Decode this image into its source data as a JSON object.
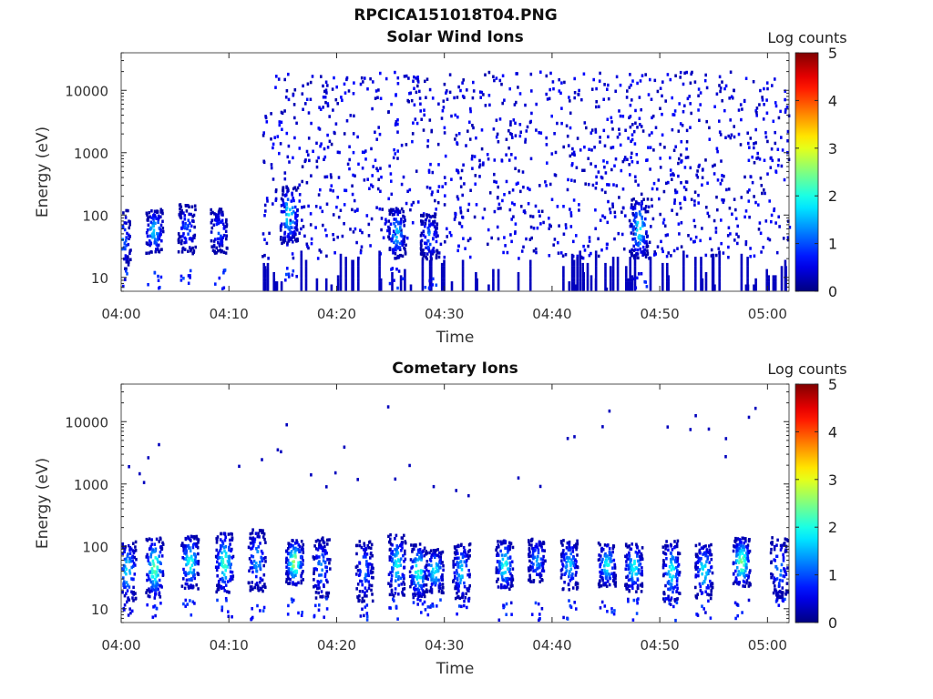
{
  "figure_title": "RPCICA151018T04.PNG",
  "colors": {
    "colormap": [
      "#00007f",
      "#0000ff",
      "#007fff",
      "#00ffff",
      "#7fff7f",
      "#ffff00",
      "#ff7f00",
      "#ff0000",
      "#7f0000"
    ],
    "axis": "#262626"
  },
  "chart_data": [
    {
      "type": "heatmap",
      "title": "Solar Wind Ions",
      "xlabel": "Time",
      "ylabel": "Energy (eV)",
      "colorbar_label": "Log counts",
      "colorbar_ticks": [
        "0",
        "1",
        "2",
        "3",
        "4",
        "5"
      ],
      "clim": [
        0,
        5
      ],
      "xlim": [
        "04:00",
        "05:02"
      ],
      "x_ticks": [
        "04:00",
        "04:10",
        "04:20",
        "04:30",
        "04:40",
        "04:50",
        "05:00"
      ],
      "y_scale": "log",
      "ylim": [
        6,
        40000
      ],
      "y_ticks": [
        "10",
        "100",
        "1000",
        "10000"
      ],
      "background_counts_from": "04:13",
      "ion_bursts": [
        {
          "time": "04:00",
          "energy_peak": 40,
          "log_counts": 1.3
        },
        {
          "time": "04:03",
          "energy_peak": 55,
          "log_counts": 1.7
        },
        {
          "time": "04:06",
          "energy_peak": 60,
          "log_counts": 1.0
        },
        {
          "time": "04:09",
          "energy_peak": 55,
          "log_counts": 1.0
        },
        {
          "time": "04:15.5",
          "energy_peak": 100,
          "log_counts": 1.9
        },
        {
          "time": "04:25.5",
          "energy_peak": 50,
          "log_counts": 1.6
        },
        {
          "time": "04:28.5",
          "energy_peak": 45,
          "log_counts": 1.2
        },
        {
          "time": "04:48",
          "energy_peak": 60,
          "log_counts": 1.9
        }
      ]
    },
    {
      "type": "heatmap",
      "title": "Cometary Ions",
      "xlabel": "Time",
      "ylabel": "Energy (eV)",
      "colorbar_label": "Log counts",
      "colorbar_ticks": [
        "0",
        "1",
        "2",
        "3",
        "4",
        "5"
      ],
      "clim": [
        0,
        5
      ],
      "xlim": [
        "04:00",
        "05:02"
      ],
      "x_ticks": [
        "04:00",
        "04:10",
        "04:20",
        "04:30",
        "04:40",
        "04:50",
        "05:00"
      ],
      "y_scale": "log",
      "ylim": [
        6,
        40000
      ],
      "y_ticks": [
        "10",
        "100",
        "1000",
        "10000"
      ],
      "ion_bursts": [
        {
          "time": "04:00.5",
          "energy_peak": 40,
          "log_counts": 1.8
        },
        {
          "time": "04:03",
          "energy_peak": 45,
          "log_counts": 2.4
        },
        {
          "time": "04:06.3",
          "energy_peak": 55,
          "log_counts": 2.1
        },
        {
          "time": "04:09.5",
          "energy_peak": 55,
          "log_counts": 2.2
        },
        {
          "time": "04:12.5",
          "energy_peak": 60,
          "log_counts": 1.5
        },
        {
          "time": "04:16",
          "energy_peak": 55,
          "log_counts": 2.7
        },
        {
          "time": "04:18.5",
          "energy_peak": 45,
          "log_counts": 1.3
        },
        {
          "time": "04:22.5",
          "energy_peak": 40,
          "log_counts": 1.2
        },
        {
          "time": "04:25.5",
          "energy_peak": 50,
          "log_counts": 1.9
        },
        {
          "time": "04:27.5",
          "energy_peak": 40,
          "log_counts": 2.2
        },
        {
          "time": "04:29",
          "energy_peak": 40,
          "log_counts": 1.9
        },
        {
          "time": "04:31.5",
          "energy_peak": 40,
          "log_counts": 1.7
        },
        {
          "time": "04:35.5",
          "energy_peak": 50,
          "log_counts": 2.1
        },
        {
          "time": "04:38.5",
          "energy_peak": 60,
          "log_counts": 1.4
        },
        {
          "time": "04:41.5",
          "energy_peak": 50,
          "log_counts": 1.6
        },
        {
          "time": "04:45",
          "energy_peak": 50,
          "log_counts": 1.9
        },
        {
          "time": "04:47.5",
          "energy_peak": 45,
          "log_counts": 2.0
        },
        {
          "time": "04:51",
          "energy_peak": 40,
          "log_counts": 1.9
        },
        {
          "time": "04:54",
          "energy_peak": 40,
          "log_counts": 1.9
        },
        {
          "time": "04:57.5",
          "energy_peak": 55,
          "log_counts": 2.6
        },
        {
          "time": "05:01",
          "energy_peak": 45,
          "log_counts": 1.3
        }
      ]
    }
  ]
}
